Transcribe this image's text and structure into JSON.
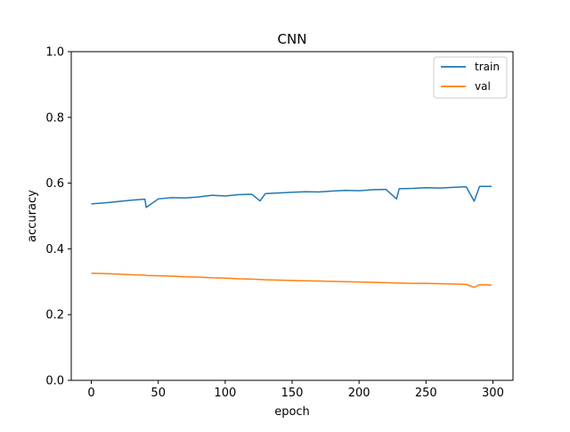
{
  "chart_data": {
    "type": "line",
    "title": "CNN",
    "xlabel": "epoch",
    "ylabel": "accuracy",
    "xlim": [
      -15,
      315
    ],
    "ylim": [
      0,
      1
    ],
    "xticks": [
      0,
      50,
      100,
      150,
      200,
      250,
      300
    ],
    "yticks": [
      0.0,
      0.2,
      0.4,
      0.6,
      0.8,
      1.0
    ],
    "xtick_labels": [
      "0",
      "50",
      "100",
      "150",
      "200",
      "250",
      "300"
    ],
    "ytick_labels": [
      "0.0",
      "0.2",
      "0.4",
      "0.6",
      "0.8",
      "1.0"
    ],
    "grid": false,
    "legend_position": "top-right",
    "x": [
      0,
      10,
      20,
      30,
      40,
      41,
      50,
      60,
      70,
      80,
      90,
      100,
      110,
      120,
      126,
      130,
      140,
      150,
      160,
      170,
      180,
      190,
      200,
      210,
      220,
      228,
      230,
      240,
      250,
      260,
      270,
      280,
      286,
      290,
      299
    ],
    "series": [
      {
        "name": "train",
        "color": "#1f77b4",
        "values": [
          0.537,
          0.54,
          0.544,
          0.548,
          0.551,
          0.526,
          0.552,
          0.556,
          0.555,
          0.558,
          0.563,
          0.561,
          0.565,
          0.566,
          0.546,
          0.568,
          0.57,
          0.572,
          0.574,
          0.573,
          0.576,
          0.578,
          0.577,
          0.58,
          0.581,
          0.552,
          0.583,
          0.584,
          0.586,
          0.585,
          0.587,
          0.589,
          0.545,
          0.59,
          0.59
        ]
      },
      {
        "name": "val",
        "color": "#ff7f0e",
        "values": [
          0.326,
          0.325,
          0.323,
          0.321,
          0.32,
          0.319,
          0.318,
          0.317,
          0.315,
          0.314,
          0.312,
          0.311,
          0.309,
          0.308,
          0.307,
          0.306,
          0.305,
          0.304,
          0.303,
          0.302,
          0.301,
          0.3,
          0.299,
          0.298,
          0.297,
          0.296,
          0.296,
          0.295,
          0.295,
          0.294,
          0.293,
          0.292,
          0.283,
          0.291,
          0.29
        ]
      }
    ]
  }
}
